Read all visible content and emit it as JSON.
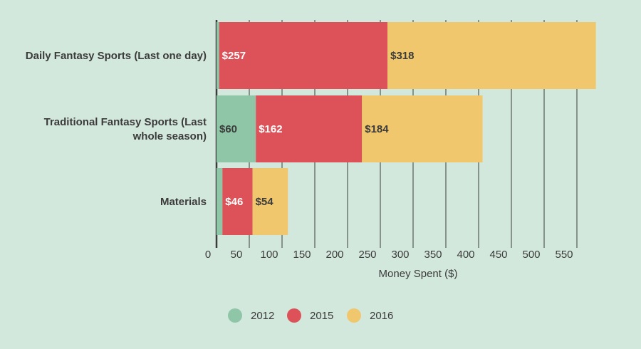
{
  "chart_data": {
    "type": "bar",
    "orientation": "horizontal",
    "stacked": true,
    "title": "",
    "xlabel": "Money Spent ($)",
    "ylabel": "",
    "xlim": [
      0,
      600
    ],
    "x_ticks": [
      0,
      50,
      100,
      150,
      200,
      250,
      300,
      350,
      400,
      450,
      500,
      550
    ],
    "grid": "vertical",
    "legend_position": "bottom",
    "categories": [
      "Daily Fantasy Sports (Last one day)",
      "Traditional Fantasy Sports (Last whole season)",
      "Materials"
    ],
    "category_lines": [
      [
        "Daily Fantasy Sports (Last one day)"
      ],
      [
        "Traditional Fantasy Sports (Last",
        "whole season)"
      ],
      [
        "Materials"
      ]
    ],
    "series": [
      {
        "name": "2012",
        "color": "#8fc6a8",
        "values": [
          4,
          60,
          9
        ],
        "labels": [
          "",
          "$60",
          ""
        ],
        "label_color": "#3b3b3b"
      },
      {
        "name": "2015",
        "color": "#dd5258",
        "values": [
          257,
          162,
          46
        ],
        "labels": [
          "$257",
          "$162",
          "$46"
        ],
        "label_color": "#ffffff"
      },
      {
        "name": "2016",
        "color": "#f1c76d",
        "values": [
          318,
          184,
          54
        ],
        "labels": [
          "$318",
          "$184",
          "$54"
        ],
        "label_color": "#3b3b3b"
      }
    ]
  },
  "colors": {
    "background": "#d3e8dc",
    "grid": "#3b3b3b",
    "text": "#3b3b3b"
  }
}
